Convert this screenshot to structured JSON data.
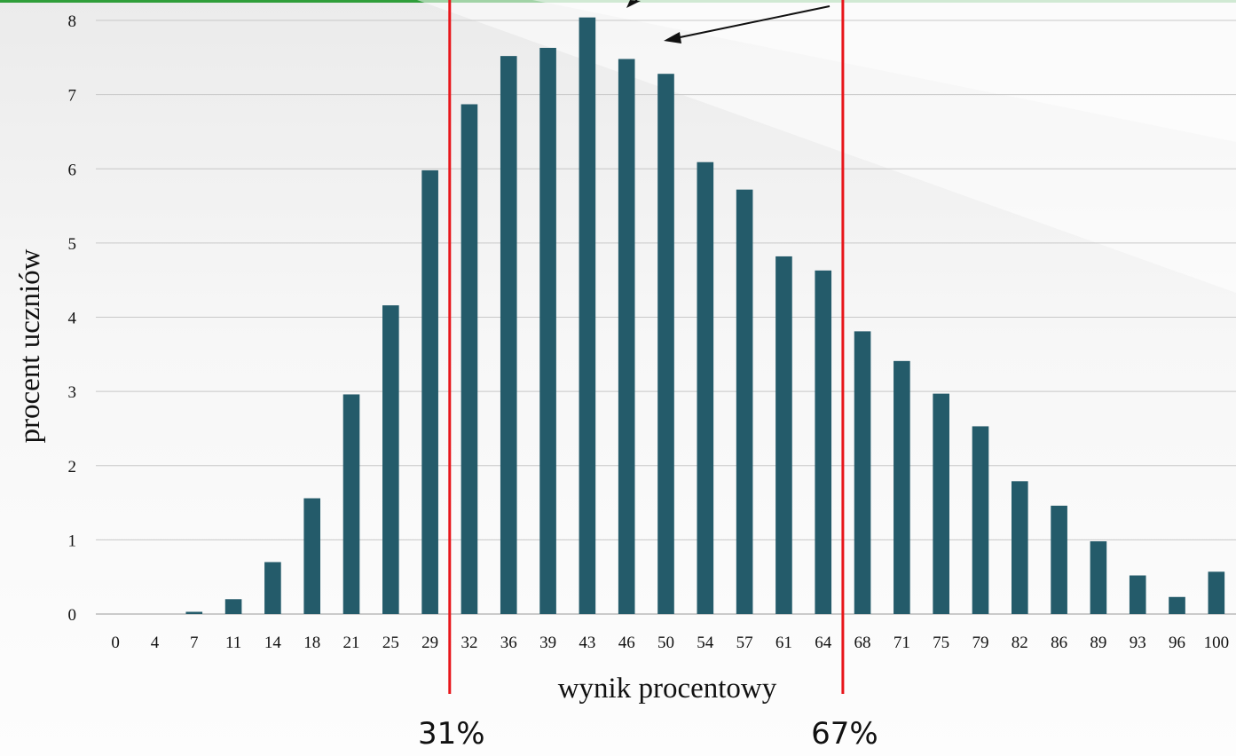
{
  "colors": {
    "bar": "#245b6a",
    "marker_line": "#e8161b",
    "grid": "#c8c8c8",
    "top_bar": "#2f9e3a"
  },
  "chart_data": {
    "type": "bar",
    "xlabel": "wynik procentowy",
    "ylabel": "procent uczniów",
    "ylim": [
      0,
      8
    ],
    "yticks": [
      0,
      1,
      2,
      3,
      4,
      5,
      6,
      7,
      8
    ],
    "grid": "horizontal",
    "categories": [
      "0",
      "4",
      "7",
      "11",
      "14",
      "18",
      "21",
      "25",
      "29",
      "32",
      "36",
      "39",
      "43",
      "46",
      "50",
      "54",
      "57",
      "61",
      "64",
      "68",
      "71",
      "75",
      "79",
      "82",
      "86",
      "89",
      "93",
      "96",
      "100"
    ],
    "values": [
      0,
      0,
      0.03,
      0.2,
      0.7,
      1.56,
      2.96,
      4.16,
      5.98,
      6.87,
      7.52,
      7.63,
      8.04,
      7.48,
      7.28,
      6.09,
      5.72,
      4.82,
      4.63,
      3.81,
      3.41,
      2.97,
      2.53,
      1.79,
      1.46,
      0.98,
      0.52,
      0.23,
      0.57
    ],
    "markers": [
      {
        "label": "31%",
        "after_category": "29"
      },
      {
        "label": "67%",
        "after_category": "64"
      }
    ]
  }
}
